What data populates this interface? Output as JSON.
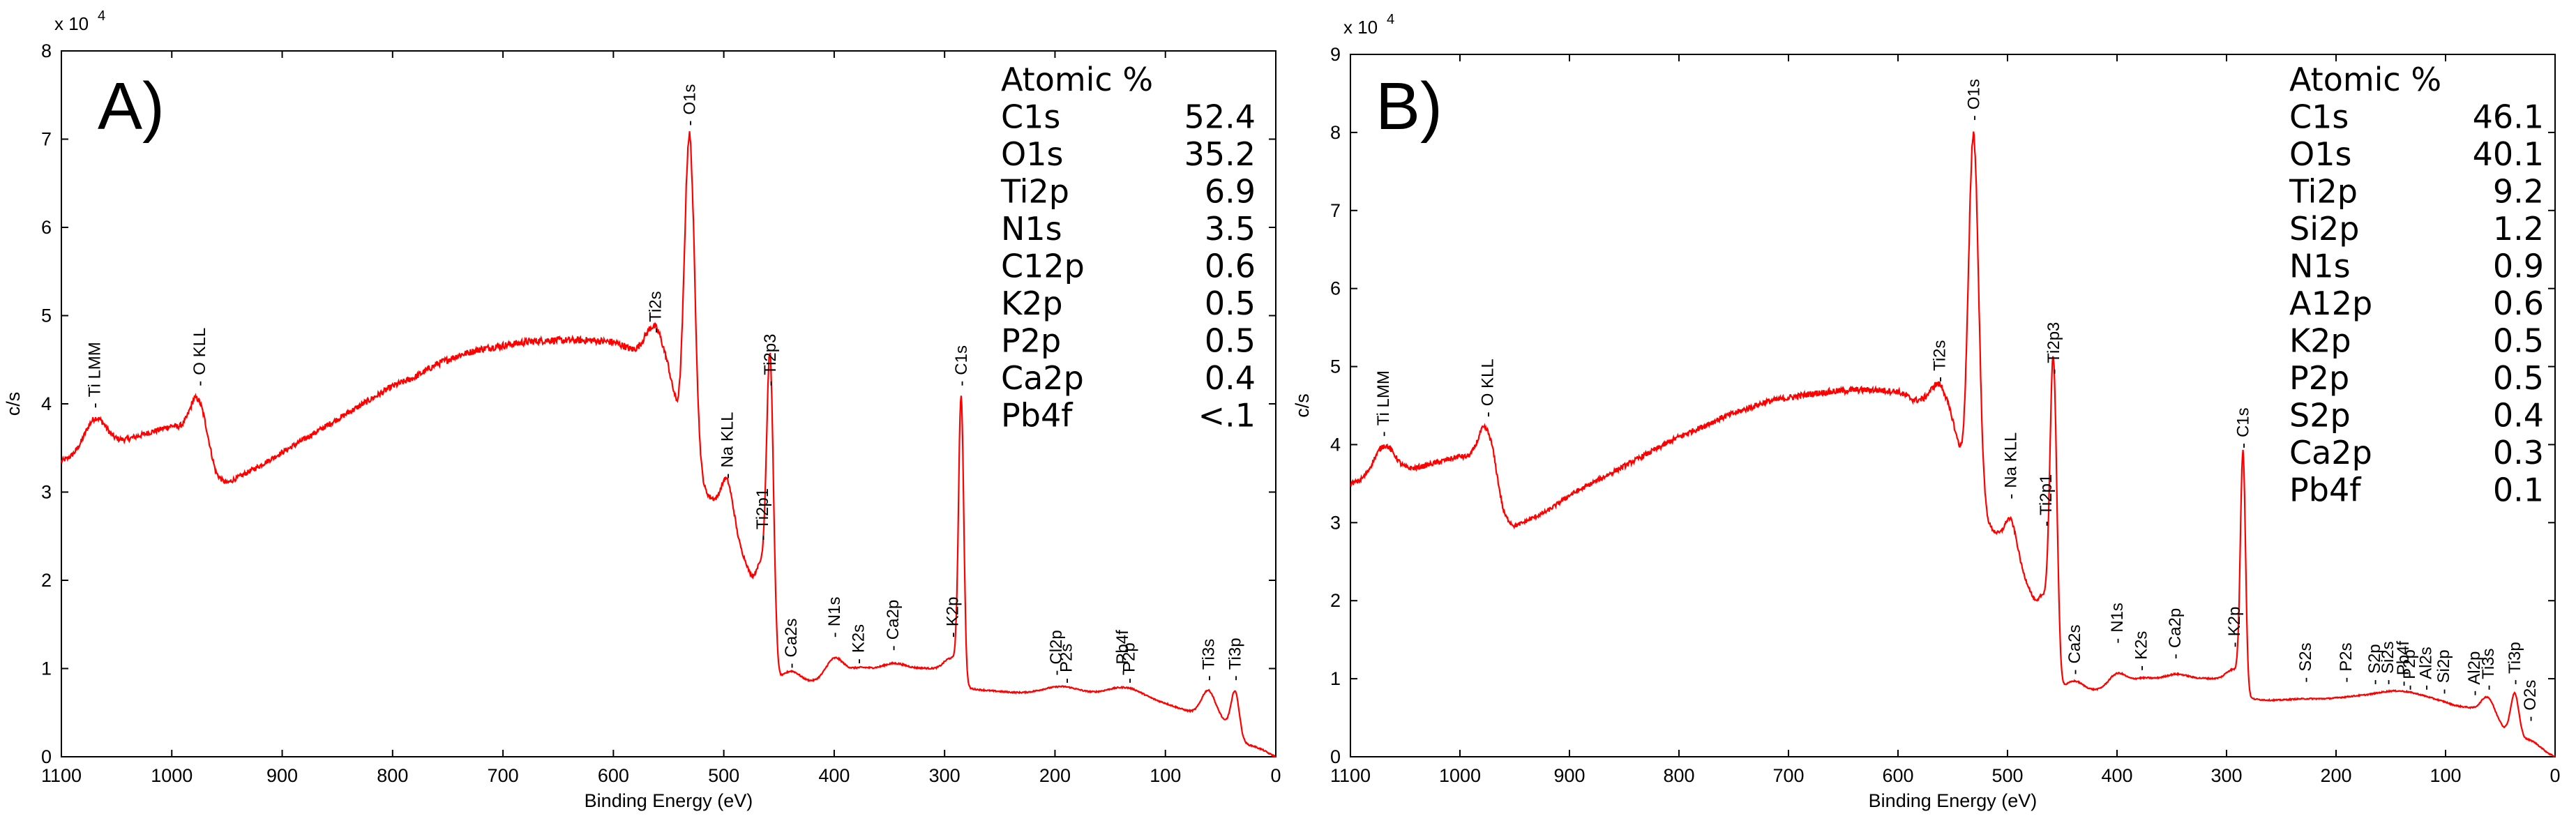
{
  "chart_data": [
    {
      "type": "line",
      "panel_label": "A)",
      "xlabel": "Binding Energy (eV)",
      "ylabel": "c/s",
      "y_exponent_label": "x 10",
      "y_exponent_power": "4",
      "xlim": [
        1100,
        0
      ],
      "ylim": [
        0,
        8
      ],
      "xticks": [
        1100,
        1000,
        900,
        800,
        700,
        600,
        500,
        400,
        300,
        200,
        100,
        0
      ],
      "yticks": [
        0,
        1,
        2,
        3,
        4,
        5,
        6,
        7,
        8
      ],
      "color": "#ff0000",
      "baseline": [
        [
          1100,
          3.35
        ],
        [
          1075,
          3.45
        ],
        [
          1060,
          3.55
        ],
        [
          1040,
          3.6
        ],
        [
          1000,
          3.75
        ],
        [
          990,
          3.7
        ],
        [
          980,
          3.65
        ],
        [
          970,
          3.4
        ],
        [
          960,
          3.15
        ],
        [
          950,
          3.1
        ],
        [
          920,
          3.3
        ],
        [
          900,
          3.45
        ],
        [
          880,
          3.6
        ],
        [
          860,
          3.75
        ],
        [
          840,
          3.9
        ],
        [
          820,
          4.05
        ],
        [
          800,
          4.2
        ],
        [
          780,
          4.3
        ],
        [
          760,
          4.45
        ],
        [
          740,
          4.55
        ],
        [
          720,
          4.62
        ],
        [
          700,
          4.66
        ],
        [
          680,
          4.7
        ],
        [
          660,
          4.72
        ],
        [
          640,
          4.72
        ],
        [
          620,
          4.72
        ],
        [
          600,
          4.7
        ],
        [
          590,
          4.65
        ],
        [
          580,
          4.55
        ],
        [
          570,
          4.45
        ],
        [
          560,
          4.35
        ],
        [
          550,
          4.2
        ],
        [
          545,
          4.0
        ],
        [
          540,
          3.6
        ],
        [
          535,
          3.3
        ],
        [
          530,
          3.1
        ],
        [
          520,
          3.05
        ],
        [
          510,
          2.9
        ],
        [
          500,
          2.7
        ],
        [
          490,
          2.5
        ],
        [
          480,
          2.2
        ],
        [
          470,
          1.8
        ],
        [
          465,
          1.5
        ],
        [
          455,
          1.0
        ],
        [
          450,
          0.85
        ],
        [
          420,
          0.85
        ],
        [
          400,
          0.85
        ],
        [
          380,
          0.9
        ],
        [
          350,
          0.95
        ],
        [
          320,
          1.0
        ],
        [
          300,
          1.0
        ],
        [
          290,
          0.95
        ],
        [
          285,
          0.78
        ],
        [
          260,
          0.75
        ],
        [
          230,
          0.72
        ],
        [
          200,
          0.7
        ],
        [
          180,
          0.7
        ],
        [
          150,
          0.7
        ],
        [
          130,
          0.68
        ],
        [
          100,
          0.6
        ],
        [
          80,
          0.52
        ],
        [
          60,
          0.45
        ],
        [
          50,
          0.42
        ],
        [
          45,
          0.35
        ],
        [
          40,
          0.22
        ],
        [
          30,
          0.15
        ],
        [
          20,
          0.12
        ],
        [
          12,
          0.08
        ],
        [
          5,
          0.03
        ],
        [
          0,
          0.0
        ]
      ],
      "peaks": [
        [
          1070,
          0.35,
          0.012
        ],
        [
          975,
          0.5,
          0.01
        ],
        [
          562,
          0.5,
          0.012
        ],
        [
          531,
          3.9,
          0.006
        ],
        [
          497,
          0.5,
          0.007
        ],
        [
          465,
          0.6,
          0.006
        ],
        [
          458,
          3.2,
          0.004
        ],
        [
          439,
          0.12,
          0.01
        ],
        [
          400,
          0.25,
          0.01
        ],
        [
          378,
          0.1,
          0.015
        ],
        [
          347,
          0.1,
          0.015
        ],
        [
          293,
          0.15,
          0.008
        ],
        [
          285,
          3.25,
          0.003
        ],
        [
          199,
          0.05,
          0.02
        ],
        [
          190,
          0.05,
          0.02
        ],
        [
          139,
          0.05,
          0.02
        ],
        [
          133,
          0.05,
          0.02
        ],
        [
          61,
          0.3,
          0.008
        ],
        [
          37,
          0.55,
          0.005
        ]
      ],
      "peak_labels": [
        {
          "text": "Ti LMM",
          "x": 1070,
          "y": 3.95
        },
        {
          "text": "O KLL",
          "x": 975,
          "y": 4.2
        },
        {
          "text": "Ti2s",
          "x": 562,
          "y": 4.8
        },
        {
          "text": "O1s",
          "x": 531,
          "y": 7.15
        },
        {
          "text": "Na KLL",
          "x": 497,
          "y": 3.15
        },
        {
          "text": "Ti2p1",
          "x": 465,
          "y": 2.45
        },
        {
          "text": "Ti2p3",
          "x": 458,
          "y": 4.2
        },
        {
          "text": "Ca2s",
          "x": 439,
          "y": 1.0
        },
        {
          "text": "N1s",
          "x": 400,
          "y": 1.35
        },
        {
          "text": "K2s",
          "x": 378,
          "y": 1.05
        },
        {
          "text": "Ca2p",
          "x": 347,
          "y": 1.2
        },
        {
          "text": "K2p",
          "x": 293,
          "y": 1.35
        },
        {
          "text": "C1s",
          "x": 285,
          "y": 4.2
        },
        {
          "text": "Cl2p",
          "x": 199,
          "y": 0.92
        },
        {
          "text": "P2s",
          "x": 190,
          "y": 0.83
        },
        {
          "text": "Pb4f",
          "x": 139,
          "y": 0.92
        },
        {
          "text": "P2p",
          "x": 133,
          "y": 0.83
        },
        {
          "text": "Ti3s",
          "x": 61,
          "y": 0.86
        },
        {
          "text": "Ti3p",
          "x": 37,
          "y": 0.86
        }
      ],
      "table": {
        "header": "Atomic %",
        "rows": [
          {
            "label": "C1s",
            "value": "52.4"
          },
          {
            "label": "O1s",
            "value": "35.2"
          },
          {
            "label": "Ti2p",
            "value": "6.9"
          },
          {
            "label": "N1s",
            "value": "3.5"
          },
          {
            "label": "C12p",
            "value": "0.6"
          },
          {
            "label": "K2p",
            "value": "0.5"
          },
          {
            "label": "P2p",
            "value": "0.5"
          },
          {
            "label": "Ca2p",
            "value": "0.4"
          },
          {
            "label": "Pb4f",
            "value": "<.1"
          }
        ]
      }
    },
    {
      "type": "line",
      "panel_label": "B)",
      "xlabel": "Binding Energy (eV)",
      "ylabel": "c/s",
      "y_exponent_label": "x 10",
      "y_exponent_power": "4",
      "xlim": [
        1100,
        0
      ],
      "ylim": [
        0,
        9
      ],
      "xticks": [
        1100,
        1000,
        900,
        800,
        700,
        600,
        500,
        400,
        300,
        200,
        100,
        0
      ],
      "yticks": [
        0,
        1,
        2,
        3,
        4,
        5,
        6,
        7,
        8,
        9
      ],
      "color": "#ff0000",
      "baseline": [
        [
          1100,
          3.5
        ],
        [
          1075,
          3.55
        ],
        [
          1060,
          3.65
        ],
        [
          1040,
          3.7
        ],
        [
          1000,
          3.85
        ],
        [
          990,
          3.8
        ],
        [
          980,
          3.75
        ],
        [
          970,
          3.5
        ],
        [
          960,
          3.05
        ],
        [
          950,
          2.95
        ],
        [
          920,
          3.15
        ],
        [
          900,
          3.35
        ],
        [
          880,
          3.5
        ],
        [
          860,
          3.65
        ],
        [
          840,
          3.8
        ],
        [
          820,
          3.95
        ],
        [
          800,
          4.1
        ],
        [
          780,
          4.22
        ],
        [
          760,
          4.35
        ],
        [
          740,
          4.45
        ],
        [
          720,
          4.55
        ],
        [
          700,
          4.6
        ],
        [
          680,
          4.65
        ],
        [
          660,
          4.68
        ],
        [
          640,
          4.7
        ],
        [
          620,
          4.7
        ],
        [
          600,
          4.68
        ],
        [
          590,
          4.6
        ],
        [
          580,
          4.5
        ],
        [
          570,
          4.35
        ],
        [
          560,
          4.25
        ],
        [
          550,
          4.1
        ],
        [
          545,
          3.9
        ],
        [
          540,
          3.5
        ],
        [
          535,
          3.2
        ],
        [
          530,
          3.05
        ],
        [
          520,
          3.0
        ],
        [
          510,
          2.85
        ],
        [
          500,
          2.65
        ],
        [
          490,
          2.45
        ],
        [
          480,
          2.15
        ],
        [
          470,
          1.75
        ],
        [
          465,
          1.4
        ],
        [
          455,
          0.95
        ],
        [
          450,
          0.85
        ],
        [
          420,
          0.85
        ],
        [
          400,
          0.85
        ],
        [
          380,
          0.9
        ],
        [
          350,
          0.95
        ],
        [
          320,
          1.0
        ],
        [
          300,
          1.0
        ],
        [
          290,
          0.95
        ],
        [
          285,
          0.75
        ],
        [
          260,
          0.72
        ],
        [
          230,
          0.7
        ],
        [
          200,
          0.7
        ],
        [
          180,
          0.7
        ],
        [
          150,
          0.68
        ],
        [
          130,
          0.65
        ],
        [
          100,
          0.6
        ],
        [
          80,
          0.52
        ],
        [
          60,
          0.42
        ],
        [
          50,
          0.38
        ],
        [
          45,
          0.3
        ],
        [
          40,
          0.2
        ],
        [
          30,
          0.14
        ],
        [
          20,
          0.1
        ],
        [
          12,
          0.06
        ],
        [
          5,
          0.02
        ],
        [
          0,
          0.0
        ]
      ],
      "peaks": [
        [
          1070,
          0.4,
          0.012
        ],
        [
          975,
          0.55,
          0.01
        ],
        [
          562,
          0.5,
          0.012
        ],
        [
          531,
          4.9,
          0.006
        ],
        [
          497,
          0.45,
          0.007
        ],
        [
          465,
          0.55,
          0.006
        ],
        [
          458,
          3.85,
          0.004
        ],
        [
          439,
          0.12,
          0.01
        ],
        [
          400,
          0.2,
          0.01
        ],
        [
          378,
          0.1,
          0.015
        ],
        [
          347,
          0.1,
          0.015
        ],
        [
          293,
          0.15,
          0.008
        ],
        [
          285,
          3.1,
          0.003
        ],
        [
          228,
          0.04,
          0.02
        ],
        [
          191,
          0.05,
          0.02
        ],
        [
          165,
          0.05,
          0.02
        ],
        [
          153,
          0.05,
          0.02
        ],
        [
          139,
          0.06,
          0.02
        ],
        [
          133,
          0.05,
          0.02
        ],
        [
          118,
          0.05,
          0.02
        ],
        [
          102,
          0.06,
          0.02
        ],
        [
          74,
          0.1,
          0.015
        ],
        [
          61,
          0.28,
          0.008
        ],
        [
          37,
          0.6,
          0.005
        ],
        [
          23,
          0.1,
          0.012
        ]
      ],
      "peak_labels": [
        {
          "text": "Ti LMM",
          "x": 1070,
          "y": 4.1
        },
        {
          "text": "O KLL",
          "x": 975,
          "y": 4.35
        },
        {
          "text": "Ti2s",
          "x": 562,
          "y": 4.8
        },
        {
          "text": "O1s",
          "x": 531,
          "y": 8.15
        },
        {
          "text": "Na KLL",
          "x": 497,
          "y": 3.3
        },
        {
          "text": "Ti2p1",
          "x": 465,
          "y": 2.95
        },
        {
          "text": "Ti2p3",
          "x": 458,
          "y": 4.9
        },
        {
          "text": "Ca2s",
          "x": 439,
          "y": 1.05
        },
        {
          "text": "N1s",
          "x": 400,
          "y": 1.45
        },
        {
          "text": "K2s",
          "x": 378,
          "y": 1.1
        },
        {
          "text": "Ca2p",
          "x": 347,
          "y": 1.25
        },
        {
          "text": "K2p",
          "x": 293,
          "y": 1.4
        },
        {
          "text": "C1s",
          "x": 285,
          "y": 3.95
        },
        {
          "text": "S2s",
          "x": 228,
          "y": 0.95
        },
        {
          "text": "P2s",
          "x": 191,
          "y": 0.95
        },
        {
          "text": "S2p",
          "x": 165,
          "y": 0.92
        },
        {
          "text": "Si2s",
          "x": 153,
          "y": 0.92
        },
        {
          "text": "Pb4f",
          "x": 139,
          "y": 0.9
        },
        {
          "text": "P2p",
          "x": 133,
          "y": 0.85
        },
        {
          "text": "Al2s",
          "x": 118,
          "y": 0.85
        },
        {
          "text": "Si2p",
          "x": 102,
          "y": 0.8
        },
        {
          "text": "Al2p",
          "x": 74,
          "y": 0.78
        },
        {
          "text": "Ti3s",
          "x": 61,
          "y": 0.85
        },
        {
          "text": "Ti3p",
          "x": 37,
          "y": 0.92
        },
        {
          "text": "O2s",
          "x": 23,
          "y": 0.45
        }
      ],
      "table": {
        "header": "Atomic %",
        "rows": [
          {
            "label": "C1s",
            "value": "46.1"
          },
          {
            "label": "O1s",
            "value": "40.1"
          },
          {
            "label": "Ti2p",
            "value": "9.2"
          },
          {
            "label": "Si2p",
            "value": "1.2"
          },
          {
            "label": "N1s",
            "value": "0.9"
          },
          {
            "label": "A12p",
            "value": "0.6"
          },
          {
            "label": "K2p",
            "value": "0.5"
          },
          {
            "label": "P2p",
            "value": "0.5"
          },
          {
            "label": "S2p",
            "value": "0.4"
          },
          {
            "label": "Ca2p",
            "value": "0.3"
          },
          {
            "label": "Pb4f",
            "value": "0.1"
          }
        ]
      }
    }
  ]
}
